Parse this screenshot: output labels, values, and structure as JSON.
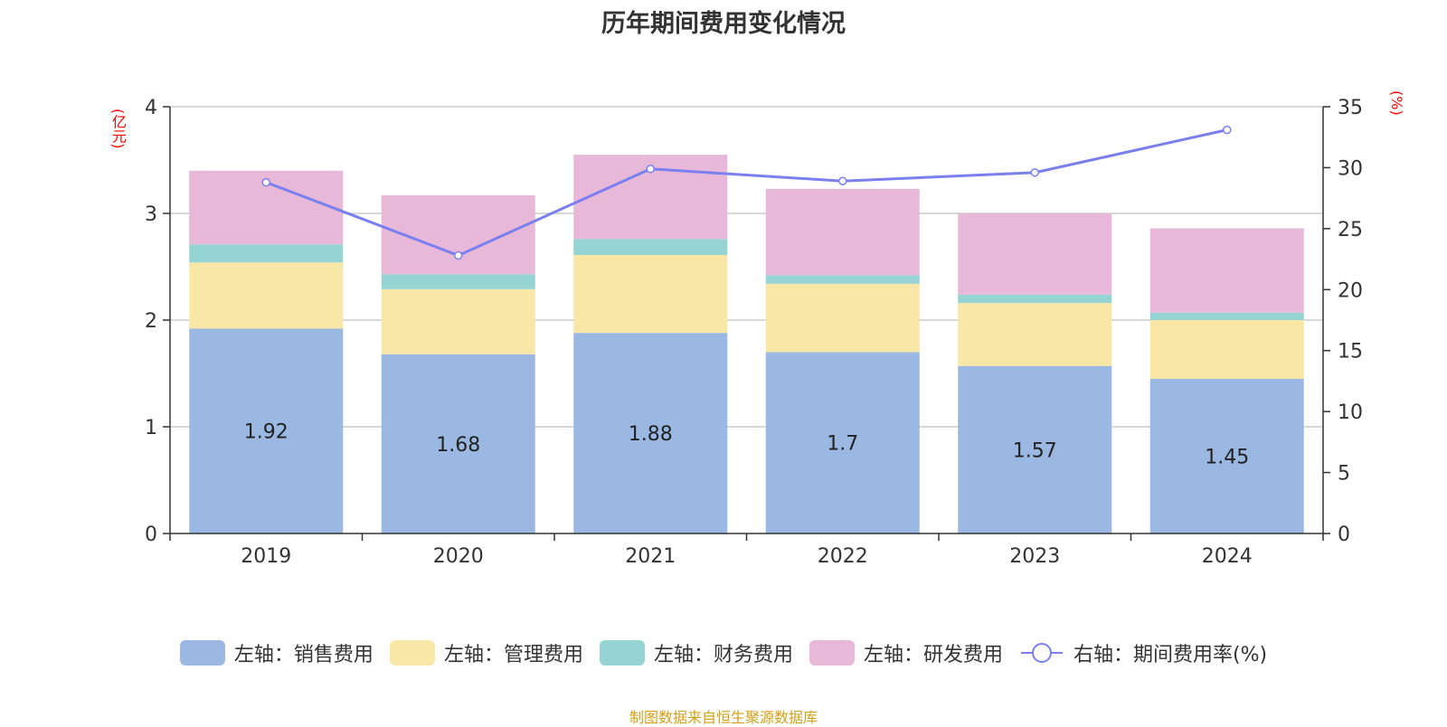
{
  "chart_data": {
    "type": "bar",
    "title": "历年期间费用变化情况",
    "categories": [
      "2019",
      "2020",
      "2021",
      "2022",
      "2023",
      "2024"
    ],
    "left_axis": {
      "unit": "(亿元)",
      "ylim": [
        0,
        4
      ],
      "ticks": [
        "0",
        "1",
        "2",
        "3",
        "4"
      ]
    },
    "right_axis": {
      "unit": "(%)",
      "ylim": [
        0,
        35
      ],
      "ticks": [
        "0",
        "5",
        "10",
        "15",
        "20",
        "25",
        "30",
        "35"
      ]
    },
    "stacked": true,
    "series": [
      {
        "name": "左轴：销售费用",
        "axis": "left",
        "color": "#9bb8e2",
        "values": [
          1.92,
          1.68,
          1.88,
          1.7,
          1.57,
          1.45
        ],
        "show_labels": true,
        "labels": [
          "1.92",
          "1.68",
          "1.88",
          "1.7",
          "1.57",
          "1.45"
        ]
      },
      {
        "name": "左轴：管理费用",
        "axis": "left",
        "color": "#f8e7a6",
        "values": [
          0.62,
          0.61,
          0.73,
          0.64,
          0.59,
          0.55
        ]
      },
      {
        "name": "左轴：财务费用",
        "axis": "left",
        "color": "#96d4d4",
        "values": [
          0.17,
          0.14,
          0.15,
          0.08,
          0.08,
          0.07
        ]
      },
      {
        "name": "左轴：研发费用",
        "axis": "left",
        "color": "#e8b8d8",
        "values": [
          0.69,
          0.74,
          0.79,
          0.81,
          0.76,
          0.79
        ]
      },
      {
        "name": "右轴：期间费用率(%)",
        "axis": "right",
        "type": "line",
        "color": "#7a7ff0",
        "values": [
          28.8,
          22.8,
          29.9,
          28.9,
          29.6,
          33.1
        ]
      }
    ],
    "grid": true,
    "legend_position": "bottom"
  },
  "footer": {
    "source": "制图数据来自恒生聚源数据库"
  }
}
